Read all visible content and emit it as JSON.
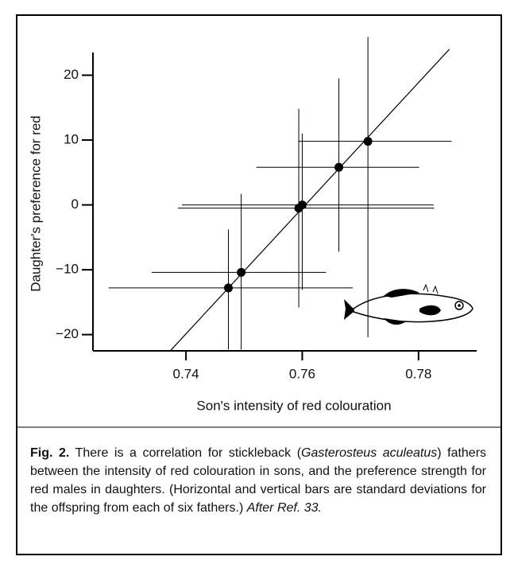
{
  "chart_data": {
    "type": "scatter",
    "x_label": "Son's intensity of red colouration",
    "y_label": "Daughter's preference for red",
    "x": [
      0.7473,
      0.7495,
      0.7594,
      0.76,
      0.7663,
      0.7713
    ],
    "series": [
      {
        "color": "#000000",
        "values": [
          -12.8,
          -10.4,
          -0.5,
          0,
          5.8,
          9.8
        ]
      }
    ],
    "x_low": [
      0.7267,
      0.7341,
      0.7386,
      0.7393,
      0.7521,
      0.7593
    ],
    "x_high": [
      0.7687,
      0.7641,
      0.7827,
      0.7826,
      0.7801,
      0.7857
    ],
    "y_low": [
      -22.3,
      -22.3,
      -15.8,
      -13.1,
      -7.2,
      -20.4
    ],
    "y_high": [
      -3.8,
      1.7,
      14.8,
      11,
      19.5,
      25.9
    ],
    "fit_line": {
      "x": [
        0.7374,
        0.7853
      ],
      "y": [
        -22.4,
        24.0
      ]
    },
    "xlim": [
      0.724,
      0.79
    ],
    "ylim": [
      -22.5,
      23.5
    ],
    "xticks": [
      0.74,
      0.76,
      0.78
    ],
    "yticks": [
      {
        "value": -20,
        "label": "−20"
      },
      {
        "value": -10,
        "label": "−10"
      },
      0,
      10,
      20
    ]
  },
  "caption": {
    "label": "Fig. 2.",
    "parts": [
      "There is a correlation for stickleback (",
      "Gasterosteus aculeatus",
      ") fathers between the intensity of red colouration in sons, and the preference strength for red males in daughters. (Horizontal and vertical bars are standard deviations for the offspring from each of six fathers.) "
    ],
    "ref": "After Ref. 33."
  }
}
